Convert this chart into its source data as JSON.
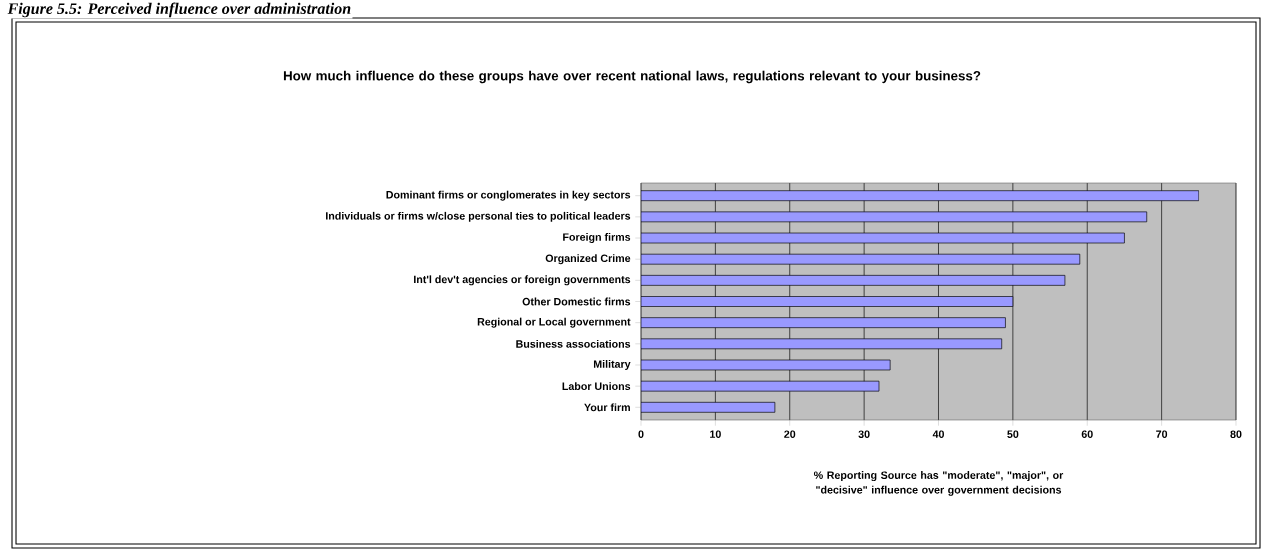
{
  "chart_data": {
    "type": "bar",
    "orientation": "horizontal",
    "title": "How much influence do these groups have over recent national laws, regulations relevant to your business?",
    "xlabel": "% Reporting Source has \"moderate\", \"major\", or \"decisive\" influence over government decisions",
    "annotations": [
      "Figure 5.5: Perceived influence over administration"
    ],
    "categories": [
      "Dominant firms or conglomerates in key sectors",
      "Individuals or firms w/close personal ties to political leaders",
      "Foreign firms",
      "Organized Crime",
      "Int'l dev't agencies or foreign governments",
      "Other Domestic firms",
      "Regional or Local government",
      "Business associations",
      "Military",
      "Labor Unions",
      "Your firm"
    ],
    "values": [
      75,
      68,
      65,
      59,
      57,
      50,
      49,
      48.5,
      33.5,
      32,
      18
    ],
    "color": "#9999ff",
    "xlim": [
      0,
      80
    ],
    "xticks": [
      0,
      10,
      20,
      30,
      40,
      50,
      60,
      70,
      80
    ],
    "grid": "x"
  }
}
